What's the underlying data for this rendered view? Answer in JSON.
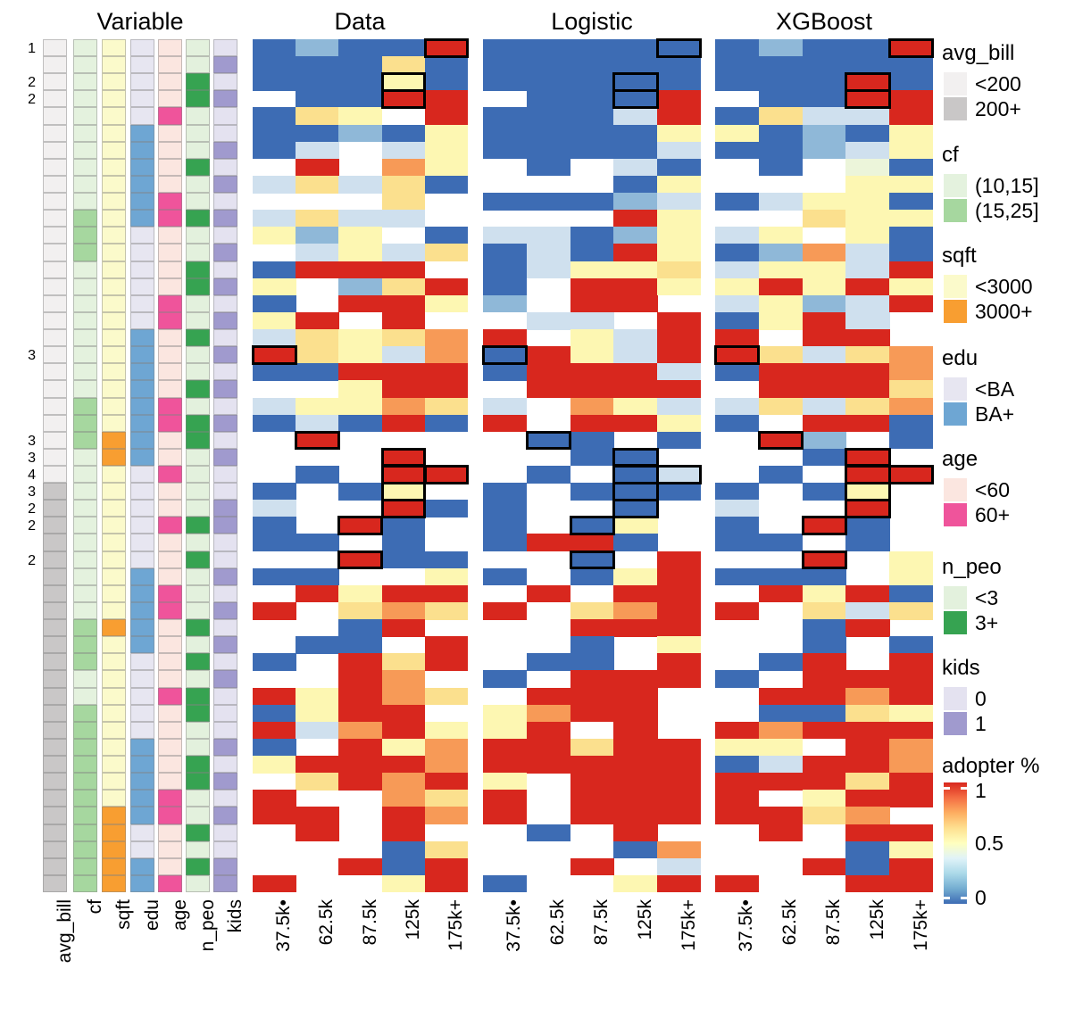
{
  "titles": {
    "variable": "Variable",
    "data": "Data",
    "logistic": "Logistic",
    "xgboost": "XGBoost"
  },
  "row_labels": [
    {
      "row": 1,
      "text": "1"
    },
    {
      "row": 3,
      "text": "2"
    },
    {
      "row": 4,
      "text": "2"
    },
    {
      "row": 19,
      "text": "3"
    },
    {
      "row": 24,
      "text": "3"
    },
    {
      "row": 25,
      "text": "3"
    },
    {
      "row": 26,
      "text": "4"
    },
    {
      "row": 27,
      "text": "3"
    },
    {
      "row": 28,
      "text": "2"
    },
    {
      "row": 29,
      "text": "2"
    },
    {
      "row": 31,
      "text": "2"
    }
  ],
  "x_labels": [
    "37.5k•",
    "62.5k",
    "87.5k",
    "125k",
    "175k+"
  ],
  "variable_labels": [
    "avg_bill",
    "cf",
    "sqft",
    "edu",
    "age",
    "n_peo",
    "kids"
  ],
  "chart_data": {
    "type": "heatmap",
    "rows": 50,
    "columns": [
      "37.5k•",
      "62.5k",
      "87.5k",
      "125k",
      "175k+"
    ],
    "value_label": "adopter %",
    "value_range": [
      0,
      1
    ],
    "color_value_map": {
      "B": 0.0,
      "b": 0.2,
      "c": 0.35,
      "w": 0.5,
      "g": 0.55,
      "Y": 0.6,
      "y": 0.7,
      "o": 0.85,
      "R": 1.0
    },
    "palette": {
      "B": "#3d6cb4",
      "b": "#8fb8d8",
      "c": "#cfe0ee",
      "w": "#ffffff",
      "g": "#ecf5da",
      "Y": "#fdf7b2",
      "y": "#fbe08e",
      "o": "#f79a57",
      "R": "#d8271e"
    },
    "panels": [
      {
        "name": "Data",
        "cells": [
          "BbBBR",
          "BBByB",
          "BBBYB",
          "wBBRR",
          "ByYwR",
          "BBbBY",
          "BcwcY",
          "wRwoY",
          "cycyB",
          "wwwyw",
          "cyccw",
          "YbYwB",
          "wcYcy",
          "BRRRw",
          "YwbyR",
          "BwRRY",
          "YRwRw",
          "cyYyo",
          "RyYco",
          "BBRRR",
          "wwYRR",
          "cYYoy",
          "BcBRB",
          "wRwww",
          "wwwRw",
          "wBwRR",
          "BwBYw",
          "cwwRB",
          "BwRBw",
          "BBwBw",
          "wwRBB",
          "BBwwY",
          "wRYRR",
          "Rwyoy",
          "wwBRw",
          "wBBwR",
          "BwRyR",
          "wwRow",
          "RYRoy",
          "BYRRw",
          "RcoRY",
          "BwRYo",
          "YRRRo",
          "wyRoR",
          "Rwwoy",
          "RRwRo",
          "wRwRw",
          "wwwBy",
          "wwRBR",
          "RwwYR"
        ]
      },
      {
        "name": "Logistic",
        "cells": [
          "BBBBB",
          "BBBBB",
          "BBBBB",
          "wBBBR",
          "BBBcR",
          "BBBBY",
          "BBBBc",
          "wBwcB",
          "wwwBY",
          "BBBbc",
          "wwwRY",
          "ccBbY",
          "BcBRY",
          "BcYYy",
          "BwRRY",
          "bwRRw",
          "wccwR",
          "RwYcR",
          "BRYcR",
          "BRRRc",
          "wRRRR",
          "cwoYc",
          "RwRRY",
          "wBBwB",
          "wwBBw",
          "wBwBc",
          "BwBBB",
          "BwwBw",
          "BwBYw",
          "BRRBw",
          "wwBwR",
          "BwBYR",
          "wRwRR",
          "RwyoR",
          "wwRRR",
          "wwBwY",
          "wBBwR",
          "BwRRR",
          "wRRRw",
          "YoRRw",
          "YRwRw",
          "RRyRR",
          "RRRRR",
          "YwRRR",
          "RwRRR",
          "RwRRR",
          "wBwRw",
          "wwwBo",
          "wwRwc",
          "BwwYR"
        ]
      },
      {
        "name": "XGBoost",
        "cells": [
          "BbBBR",
          "BBBBB",
          "BBBRB",
          "wBBRR",
          "ByccR",
          "YBbBY",
          "BBbcY",
          "wBwgB",
          "wwwYY",
          "BcYYB",
          "wwyYY",
          "cYwYB",
          "BbocB",
          "cYYcR",
          "YRYRY",
          "cYbcR",
          "BYRcw",
          "RwRRw",
          "Rycyo",
          "BRRRo",
          "wRRRy",
          "cycyo",
          "BwRRB",
          "wRbwB",
          "wwBRw",
          "wBwRR",
          "BwBYw",
          "cwwRw",
          "BwRBw",
          "BBwBw",
          "wwRwY",
          "BBBwY",
          "wRYRB",
          "Rwycy",
          "wwBRw",
          "wwBwB",
          "wBRwR",
          "BwRRR",
          "wRRoR",
          "wBByY",
          "RoRRR",
          "YYwRo",
          "BcRRo",
          "RRRyR",
          "RwYRR",
          "RRyow",
          "wRwRR",
          "wwwBY",
          "wwRBR",
          "RwwRR"
        ]
      }
    ],
    "highlighted_cells": [
      [
        1,
        5
      ],
      [
        3,
        4
      ],
      [
        4,
        4
      ],
      [
        19,
        1
      ],
      [
        24,
        2
      ],
      [
        25,
        4
      ],
      [
        26,
        4
      ],
      [
        26,
        5
      ],
      [
        27,
        4
      ],
      [
        28,
        4
      ],
      [
        29,
        3
      ],
      [
        31,
        3
      ]
    ],
    "variable_matrix": {
      "note": "dark_rows = rows (1-50) where the variable takes its second (dark) category",
      "columns": [
        {
          "name": "avg_bill",
          "light": "#f2f0f0",
          "dark": "#c9c7c7",
          "dark_rows": [
            27,
            28,
            29,
            30,
            31,
            32,
            33,
            34,
            35,
            36,
            37,
            38,
            39,
            40,
            41,
            42,
            43,
            44,
            45,
            46,
            47,
            48,
            49,
            50
          ]
        },
        {
          "name": "cf",
          "light": "#e4f2de",
          "dark": "#a6d79f",
          "dark_rows": [
            11,
            12,
            13,
            22,
            23,
            24,
            35,
            36,
            37,
            40,
            41,
            42,
            43,
            44,
            45,
            46,
            47,
            48,
            49,
            50
          ]
        },
        {
          "name": "sqft",
          "light": "#fbfacb",
          "dark": "#f89e31",
          "dark_rows": [
            24,
            25,
            35,
            46,
            47,
            48,
            49,
            50
          ]
        },
        {
          "name": "edu",
          "light": "#e7e6f1",
          "dark": "#6ea6d3",
          "dark_rows": [
            6,
            7,
            8,
            9,
            10,
            11,
            18,
            19,
            20,
            21,
            22,
            23,
            24,
            25,
            32,
            33,
            34,
            35,
            36,
            42,
            43,
            44,
            45,
            46,
            49,
            50
          ]
        },
        {
          "name": "age",
          "light": "#fbe6e0",
          "dark": "#ef549b",
          "dark_rows": [
            5,
            10,
            11,
            16,
            17,
            22,
            23,
            26,
            29,
            33,
            34,
            39,
            45,
            46,
            50
          ]
        },
        {
          "name": "n_peo",
          "light": "#e3f1dd",
          "dark": "#36a351",
          "dark_rows": [
            3,
            4,
            8,
            11,
            14,
            15,
            18,
            21,
            23,
            24,
            29,
            31,
            35,
            37,
            39,
            40,
            43,
            44,
            47,
            49
          ]
        },
        {
          "name": "kids",
          "light": "#e4e2f0",
          "dark": "#a09ace",
          "dark_rows": [
            2,
            4,
            7,
            9,
            11,
            13,
            15,
            17,
            19,
            21,
            23,
            25,
            28,
            29,
            32,
            34,
            36,
            38,
            42,
            44,
            46,
            49,
            50
          ]
        }
      ]
    }
  },
  "legend": {
    "groups": [
      {
        "title": "avg_bill",
        "items": [
          {
            "label": "<200",
            "color": "#f2f0f0"
          },
          {
            "label": "200+",
            "color": "#c9c7c7"
          }
        ]
      },
      {
        "title": "cf",
        "items": [
          {
            "label": "(10,15]",
            "color": "#e4f2de"
          },
          {
            "label": "(15,25]",
            "color": "#a6d79f"
          }
        ]
      },
      {
        "title": "sqft",
        "items": [
          {
            "label": "<3000",
            "color": "#fbfacb"
          },
          {
            "label": "3000+",
            "color": "#f89e31"
          }
        ]
      },
      {
        "title": "edu",
        "items": [
          {
            "label": "<BA",
            "color": "#e7e6f1"
          },
          {
            "label": "BA+",
            "color": "#6ea6d3"
          }
        ]
      },
      {
        "title": "age",
        "items": [
          {
            "label": "<60",
            "color": "#fbe6e0"
          },
          {
            "label": "60+",
            "color": "#ef549b"
          }
        ]
      },
      {
        "title": "n_peo",
        "items": [
          {
            "label": "<3",
            "color": "#e3f1dd"
          },
          {
            "label": "3+",
            "color": "#36a351"
          }
        ]
      },
      {
        "title": "kids",
        "items": [
          {
            "label": "0",
            "color": "#e4e2f0"
          },
          {
            "label": "1",
            "color": "#a09ace"
          }
        ]
      }
    ],
    "colorbar": {
      "title": "adopter %",
      "ticks": [
        "1",
        "0.5",
        "0"
      ],
      "gradient": [
        "#d8271e",
        "#f46d43",
        "#fdae61",
        "#fee090",
        "#ffffbf",
        "#e0f3f8",
        "#abd9e9",
        "#74add1",
        "#3d6cb4"
      ]
    }
  }
}
